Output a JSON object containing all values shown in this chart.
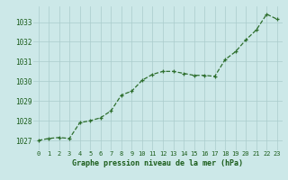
{
  "x": [
    0,
    1,
    2,
    3,
    4,
    5,
    6,
    7,
    8,
    9,
    10,
    11,
    12,
    13,
    14,
    15,
    16,
    17,
    18,
    19,
    20,
    21,
    22,
    23
  ],
  "y": [
    1027.0,
    1027.1,
    1027.15,
    1027.1,
    1027.9,
    1028.0,
    1028.15,
    1028.5,
    1029.3,
    1029.5,
    1030.05,
    1030.35,
    1030.5,
    1030.5,
    1030.4,
    1030.3,
    1030.3,
    1030.25,
    1031.1,
    1031.5,
    1032.1,
    1032.6,
    1033.4,
    1033.15
  ],
  "line_color": "#2d6e2d",
  "marker_color": "#2d6e2d",
  "bg_color": "#cce8e8",
  "grid_color": "#aacccc",
  "xlabel": "Graphe pression niveau de la mer (hPa)",
  "xlabel_color": "#1a5c1a",
  "tick_color": "#1a5c1a",
  "ylim": [
    1026.5,
    1033.8
  ],
  "yticks": [
    1027,
    1028,
    1029,
    1030,
    1031,
    1032,
    1033
  ],
  "xticks": [
    0,
    1,
    2,
    3,
    4,
    5,
    6,
    7,
    8,
    9,
    10,
    11,
    12,
    13,
    14,
    15,
    16,
    17,
    18,
    19,
    20,
    21,
    22,
    23
  ]
}
